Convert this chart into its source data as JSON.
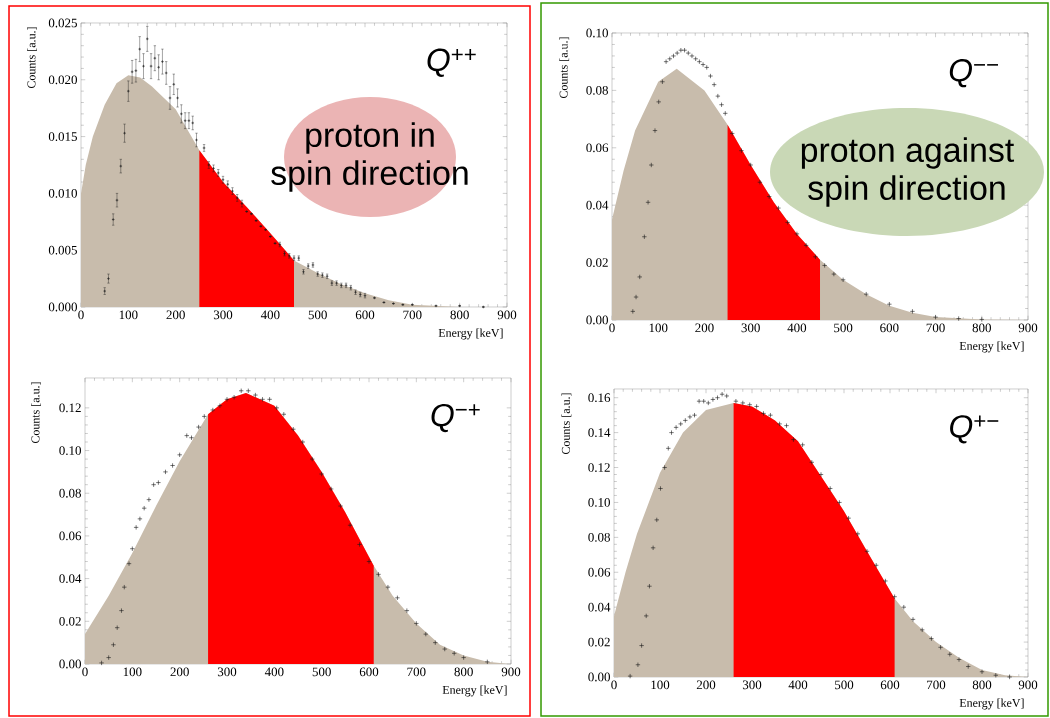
{
  "chart_data": [
    {
      "type": "area",
      "xlabel": "Energy [keV]",
      "ylabel": "Counts [a.u.]",
      "xlim": [
        0,
        900
      ],
      "ylim": [
        0,
        0.025
      ],
      "xticks": [
        0,
        100,
        200,
        300,
        400,
        500,
        600,
        700,
        800,
        900
      ],
      "yticks": [
        {
          "value": 0,
          "label": "0.000"
        },
        {
          "value": 0.005,
          "label": "0.005"
        },
        {
          "value": 0.01,
          "label": "0.010"
        },
        {
          "value": 0.015,
          "label": "0.015"
        },
        {
          "value": 0.02,
          "label": "0.020"
        },
        {
          "value": 0.025,
          "label": "0.025"
        }
      ],
      "annotations": [
        "*Q*$^{++}$",
        "proton in",
        "spin direction"
      ],
      "series": [
        {
          "color": "#c8bcac",
          "x": [
            0,
            10,
            25,
            50,
            75,
            100,
            125,
            150,
            200,
            250,
            300,
            350,
            400,
            450,
            500,
            550,
            600,
            650,
            700,
            800,
            900
          ],
          "values": [
            0.01,
            0.0125,
            0.015,
            0.0178,
            0.0197,
            0.0204,
            0.0202,
            0.0194,
            0.0174,
            0.0138,
            0.011,
            0.0088,
            0.0065,
            0.0041,
            0.003,
            0.002,
            0.0012,
            0.0006,
            0.0002,
            0.0,
            0.0
          ]
        },
        {
          "color": "#ff0000",
          "x": [
            250,
            300,
            350,
            400,
            450
          ],
          "values": [
            0.0138,
            0.011,
            0.0088,
            0.0065,
            0.0041
          ]
        },
        {
          "type": "scatter",
          "color": "#1a1a1a",
          "marker": "cross",
          "x": [
            50,
            58,
            68,
            76,
            84,
            92,
            100,
            108,
            116,
            124,
            132,
            140,
            148,
            156,
            164,
            172,
            180,
            188,
            196,
            204,
            212,
            220,
            228,
            236,
            244,
            260,
            270,
            280,
            290,
            300,
            310,
            320,
            330,
            340,
            350,
            360,
            370,
            380,
            390,
            400,
            410,
            420,
            430,
            440,
            450,
            460,
            470,
            480,
            490,
            500,
            510,
            520,
            530,
            540,
            550,
            560,
            570,
            580,
            590,
            600,
            620,
            640,
            660,
            680,
            700,
            750,
            800,
            850
          ],
          "values": [
            0.0014,
            0.0025,
            0.0077,
            0.0094,
            0.0124,
            0.0153,
            0.019,
            0.0207,
            0.0208,
            0.0227,
            0.0212,
            0.0236,
            0.0212,
            0.0219,
            0.0211,
            0.0216,
            0.0206,
            0.0184,
            0.0196,
            0.0184,
            0.017,
            0.0164,
            0.0164,
            0.0162,
            0.0147,
            0.014,
            0.0125,
            0.0122,
            0.0118,
            0.0112,
            0.0108,
            0.0102,
            0.0096,
            0.0091,
            0.0084,
            0.0082,
            0.0076,
            0.0071,
            0.0068,
            0.0062,
            0.0056,
            0.0055,
            0.0047,
            0.0045,
            0.0043,
            0.0043,
            0.0031,
            0.0036,
            0.0037,
            0.0029,
            0.0028,
            0.0027,
            0.0021,
            0.0021,
            0.0019,
            0.0019,
            0.0017,
            0.0013,
            0.0011,
            0.001,
            0.0008,
            0.0004,
            0.0003,
            0.0002,
            0.0002,
            0.0001,
            0.0001,
            0.0
          ],
          "errors": [
            0.0003,
            0.0004,
            0.0005,
            0.0006,
            0.0006,
            0.0008,
            0.0009,
            0.001,
            0.001,
            0.0011,
            0.0011,
            0.0011,
            0.0011,
            0.0011,
            0.0011,
            0.0011,
            0.001,
            0.001,
            0.0009,
            0.0008,
            0.0008,
            0.0007,
            0.0007,
            0.0006,
            0.0006,
            0.0003,
            0.0003,
            0.0003,
            0.0003,
            0.0003,
            0.0003,
            0.0003,
            0.0003,
            0.0003,
            null,
            null,
            null,
            null,
            null,
            null,
            null,
            0.0002,
            0.0002,
            0.0002,
            0.0002,
            0.0002,
            0.0002,
            0.0002,
            0.0002,
            0.0002,
            0.0002,
            0.0002,
            0.0002,
            0.0002,
            0.0002,
            0.0002,
            0.0002,
            0.0002,
            0.0002,
            0.0002,
            null,
            null,
            null,
            null,
            null,
            null,
            null,
            null
          ]
        }
      ]
    },
    {
      "type": "area",
      "xlabel": "Energy [keV]",
      "ylabel": "Counts [a.u.]",
      "xlim": [
        0,
        900
      ],
      "ylim": [
        0,
        0.1
      ],
      "xticks": [
        0,
        100,
        200,
        300,
        400,
        500,
        600,
        700,
        800,
        900
      ],
      "yticks": [
        {
          "value": 0,
          "label": "0.00"
        },
        {
          "value": 0.02,
          "label": "0.02"
        },
        {
          "value": 0.04,
          "label": "0.04"
        },
        {
          "value": 0.06,
          "label": "0.06"
        },
        {
          "value": 0.08,
          "label": "0.08"
        },
        {
          "value": 0.1,
          "label": "0.10"
        }
      ],
      "annotations": [
        "*Q*$^{−−}$",
        "proton against",
        "spin direction"
      ],
      "series": [
        {
          "color": "#c8bcac",
          "x": [
            0,
            25,
            50,
            100,
            140,
            200,
            250,
            300,
            350,
            400,
            450,
            500,
            550,
            600,
            650,
            700,
            800,
            900
          ],
          "values": [
            0.035,
            0.052,
            0.066,
            0.083,
            0.0875,
            0.08,
            0.068,
            0.054,
            0.041,
            0.03,
            0.021,
            0.014,
            0.009,
            0.005,
            0.0025,
            0.001,
            0.0002,
            0
          ]
        },
        {
          "color": "#ff0000",
          "x": [
            250,
            300,
            350,
            400,
            450
          ],
          "values": [
            0.068,
            0.054,
            0.041,
            0.03,
            0.021
          ]
        },
        {
          "type": "scatter",
          "color": "#1a1a1a",
          "marker": "cross",
          "x": [
            45,
            52,
            60,
            70,
            78,
            85,
            93,
            101,
            109,
            117,
            125,
            133,
            141,
            149,
            157,
            165,
            173,
            181,
            189,
            197,
            205,
            213,
            221,
            229,
            237,
            245,
            260,
            280,
            300,
            320,
            340,
            360,
            380,
            400,
            420,
            440,
            460,
            480,
            500,
            550,
            600,
            650,
            700,
            750,
            800
          ],
          "values": [
            0.003,
            0.008,
            0.015,
            0.029,
            0.041,
            0.054,
            0.066,
            0.076,
            0.083,
            0.09,
            0.091,
            0.092,
            0.093,
            0.094,
            0.094,
            0.093,
            0.092,
            0.091,
            0.09,
            0.089,
            0.088,
            0.085,
            0.082,
            0.078,
            0.075,
            0.072,
            0.065,
            0.059,
            0.054,
            0.048,
            0.043,
            0.039,
            0.034,
            0.03,
            0.026,
            0.022,
            0.019,
            0.016,
            0.014,
            0.009,
            0.0055,
            0.003,
            0.001,
            0.0005,
            0.0002
          ]
        }
      ]
    },
    {
      "type": "area",
      "xlabel": "Energy [keV]",
      "ylabel": "Counts [a.u.]",
      "xlim": [
        0,
        900
      ],
      "ylim": [
        0,
        0.134
      ],
      "xticks": [
        0,
        100,
        200,
        300,
        400,
        500,
        600,
        700,
        800,
        900
      ],
      "yticks": [
        {
          "value": 0,
          "label": "0.00"
        },
        {
          "value": 0.02,
          "label": "0.02"
        },
        {
          "value": 0.04,
          "label": "0.04"
        },
        {
          "value": 0.06,
          "label": "0.06"
        },
        {
          "value": 0.08,
          "label": "0.08"
        },
        {
          "value": 0.1,
          "label": "0.10"
        },
        {
          "value": 0.12,
          "label": "0.12"
        }
      ],
      "annotations": [
        "*Q*$^{−+}$"
      ],
      "series": [
        {
          "color": "#c8bcac",
          "x": [
            0,
            50,
            100,
            150,
            200,
            260,
            300,
            340,
            400,
            450,
            500,
            550,
            610,
            650,
            700,
            750,
            800,
            850,
            900
          ],
          "values": [
            0.014,
            0.032,
            0.052,
            0.074,
            0.095,
            0.117,
            0.124,
            0.127,
            0.121,
            0.107,
            0.09,
            0.071,
            0.046,
            0.032,
            0.019,
            0.009,
            0.004,
            0.001,
            0
          ]
        },
        {
          "color": "#ff0000",
          "x": [
            260,
            300,
            340,
            400,
            450,
            500,
            550,
            610
          ],
          "values": [
            0.117,
            0.124,
            0.127,
            0.121,
            0.107,
            0.09,
            0.071,
            0.046
          ]
        },
        {
          "type": "scatter",
          "color": "#1a1a1a",
          "marker": "cross",
          "x": [
            35,
            50,
            60,
            68,
            77,
            83,
            93,
            100,
            108,
            116,
            125,
            135,
            145,
            155,
            170,
            185,
            200,
            215,
            225,
            240,
            252,
            270,
            285,
            300,
            315,
            330,
            345,
            360,
            375,
            390,
            405,
            420,
            440,
            460,
            480,
            500,
            520,
            540,
            560,
            580,
            600,
            620,
            640,
            660,
            680,
            700,
            720,
            740,
            760,
            780,
            800,
            850
          ],
          "values": [
            0.0005,
            0.003,
            0.009,
            0.017,
            0.025,
            0.036,
            0.047,
            0.054,
            0.064,
            0.068,
            0.073,
            0.077,
            0.084,
            0.085,
            0.09,
            0.093,
            0.098,
            0.107,
            0.106,
            0.111,
            0.116,
            0.119,
            0.121,
            0.124,
            0.125,
            0.128,
            0.128,
            0.126,
            0.124,
            0.124,
            0.12,
            0.117,
            0.11,
            0.104,
            0.096,
            0.089,
            0.082,
            0.074,
            0.065,
            0.056,
            0.048,
            0.042,
            0.036,
            0.031,
            0.025,
            0.019,
            0.014,
            0.01,
            0.007,
            0.005,
            0.003,
            0.001
          ]
        }
      ]
    },
    {
      "type": "area",
      "xlabel": "Energy [keV]",
      "ylabel": "Counts [a.u.]",
      "xlim": [
        0,
        900
      ],
      "ylim": [
        0,
        0.165
      ],
      "xticks": [
        0,
        100,
        200,
        300,
        400,
        500,
        600,
        700,
        800,
        900
      ],
      "yticks": [
        {
          "value": 0,
          "label": "0.00"
        },
        {
          "value": 0.02,
          "label": "0.02"
        },
        {
          "value": 0.04,
          "label": "0.04"
        },
        {
          "value": 0.06,
          "label": "0.06"
        },
        {
          "value": 0.08,
          "label": "0.08"
        },
        {
          "value": 0.1,
          "label": "0.10"
        },
        {
          "value": 0.12,
          "label": "0.12"
        },
        {
          "value": 0.14,
          "label": "0.14"
        },
        {
          "value": 0.16,
          "label": "0.16"
        }
      ],
      "annotations": [
        "*Q*$^{+−}$"
      ],
      "series": [
        {
          "color": "#c8bcac",
          "x": [
            0,
            25,
            50,
            100,
            150,
            200,
            260,
            300,
            350,
            400,
            450,
            500,
            550,
            610,
            650,
            700,
            750,
            800,
            850,
            900
          ],
          "values": [
            0.035,
            0.06,
            0.082,
            0.117,
            0.14,
            0.153,
            0.157,
            0.155,
            0.147,
            0.135,
            0.115,
            0.095,
            0.072,
            0.045,
            0.032,
            0.02,
            0.011,
            0.004,
            0.001,
            0
          ]
        },
        {
          "color": "#ff0000",
          "x": [
            260,
            300,
            350,
            400,
            450,
            500,
            550,
            610
          ],
          "values": [
            0.157,
            0.155,
            0.147,
            0.135,
            0.115,
            0.095,
            0.072,
            0.045
          ]
        },
        {
          "type": "scatter",
          "color": "#1a1a1a",
          "marker": "cross",
          "x": [
            35,
            52,
            60,
            70,
            77,
            85,
            93,
            101,
            110,
            118,
            125,
            135,
            145,
            155,
            165,
            175,
            185,
            195,
            205,
            215,
            225,
            235,
            245,
            265,
            280,
            295,
            310,
            325,
            340,
            360,
            375,
            390,
            410,
            430,
            450,
            470,
            490,
            510,
            530,
            550,
            570,
            590,
            610,
            630,
            650,
            670,
            690,
            710,
            730,
            750,
            770,
            800,
            830,
            860
          ],
          "values": [
            0.0005,
            0.007,
            0.018,
            0.035,
            0.052,
            0.074,
            0.09,
            0.108,
            0.12,
            0.131,
            0.14,
            0.143,
            0.145,
            0.147,
            0.149,
            0.15,
            0.158,
            0.158,
            0.157,
            0.159,
            0.16,
            0.162,
            0.161,
            0.158,
            0.157,
            0.156,
            0.155,
            0.151,
            0.15,
            0.145,
            0.144,
            0.136,
            0.133,
            0.123,
            0.116,
            0.108,
            0.1,
            0.091,
            0.082,
            0.072,
            0.064,
            0.055,
            0.046,
            0.04,
            0.033,
            0.027,
            0.022,
            0.017,
            0.013,
            0.01,
            0.006,
            0.003,
            0.001,
            0
          ]
        }
      ]
    }
  ]
}
